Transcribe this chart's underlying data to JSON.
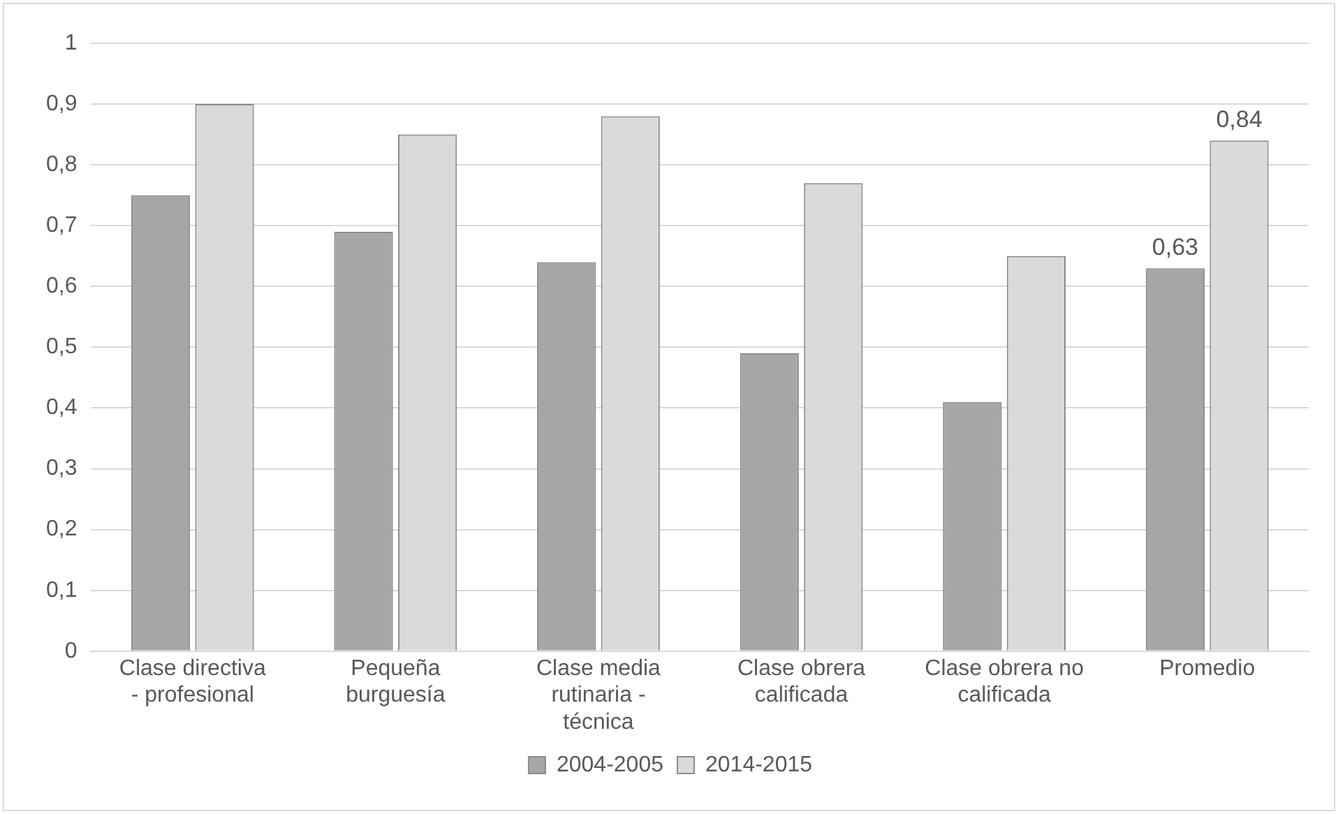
{
  "chart_data": {
    "type": "bar",
    "categories": [
      "Clase directiva - profesional",
      "Pequeña burguesía",
      "Clase media rutinaria - técnica",
      "Clase obrera calificada",
      "Clase obrera no calificada",
      "Promedio"
    ],
    "series": [
      {
        "name": "2004-2005",
        "color": "#a6a6a6",
        "values": [
          0.75,
          0.69,
          0.64,
          0.49,
          0.41,
          0.63
        ],
        "value_labels": [
          null,
          null,
          null,
          null,
          null,
          "0,63"
        ]
      },
      {
        "name": "2014-2015",
        "color": "#dadada",
        "values": [
          0.9,
          0.85,
          0.88,
          0.77,
          0.65,
          0.84
        ],
        "value_labels": [
          null,
          null,
          null,
          null,
          null,
          "0,84"
        ]
      }
    ],
    "ylim": [
      0,
      1
    ],
    "yticks": [
      {
        "value": 0,
        "label": "0"
      },
      {
        "value": 0.1,
        "label": "0,1"
      },
      {
        "value": 0.2,
        "label": "0,2"
      },
      {
        "value": 0.3,
        "label": "0,3"
      },
      {
        "value": 0.4,
        "label": "0,4"
      },
      {
        "value": 0.5,
        "label": "0,5"
      },
      {
        "value": 0.6,
        "label": "0,6"
      },
      {
        "value": 0.7,
        "label": "0,7"
      },
      {
        "value": 0.8,
        "label": "0,8"
      },
      {
        "value": 0.9,
        "label": "0,9"
      },
      {
        "value": 1,
        "label": "1"
      }
    ],
    "grid": "y",
    "legend": "bottom"
  }
}
